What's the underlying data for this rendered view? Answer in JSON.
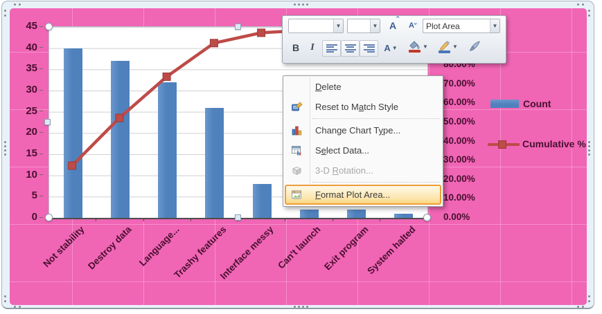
{
  "chart_data": {
    "type": "bar",
    "subtype": "pareto (clustered column + line on secondary axis)",
    "title": "",
    "categories": [
      "Not stability",
      "Destroy data",
      "Language...",
      "Trashy features",
      "Interface messy",
      "Can't launch",
      "Exit program",
      "System halted"
    ],
    "series": [
      {
        "name": "Count",
        "type": "bar",
        "axis": "left",
        "color": "#4F81BD",
        "values": [
          40,
          37,
          32,
          26,
          8,
          2,
          2,
          1
        ]
      },
      {
        "name": "Cumulative %",
        "type": "line",
        "axis": "right",
        "color": "#BE4B48",
        "marker": "square",
        "values": [
          27.0,
          52.0,
          73.6,
          91.2,
          96.6,
          98.0,
          99.3,
          100.0
        ]
      }
    ],
    "left_axis": {
      "min": 0,
      "max": 45,
      "step": 5
    },
    "right_axis": {
      "min": 0,
      "max": 100,
      "step": 10,
      "suffix": "%",
      "decimals": 2
    },
    "grid": "horizontal major gridlines",
    "legend_position": "right",
    "chart_area_color": "#F165B5",
    "axis_text_color": "#47102F"
  },
  "legend": {
    "series_1": "Count",
    "series_2": "Cumulative %"
  },
  "mini_toolbar": {
    "selection_label": "Plot Area",
    "font_name_value": "",
    "font_size_value": "",
    "bold_label": "B",
    "italic_label": "I",
    "grow_font_label": "A",
    "shrink_font_label": "A",
    "font_color_label": "A",
    "icons": [
      "grow-font",
      "shrink-font",
      "bold",
      "italic",
      "align-left",
      "align-center",
      "align-right",
      "font-color",
      "fill-color",
      "outline-color",
      "format-painter"
    ]
  },
  "context_menu": {
    "items": [
      {
        "pre": "",
        "key": "D",
        "post": "elete"
      },
      {
        "pre": "Reset to M",
        "key": "a",
        "post": "tch Style",
        "icon": "reset-style"
      },
      {
        "pre": "Change Chart T",
        "key": "y",
        "post": "pe...",
        "icon": "change-chart-type"
      },
      {
        "pre": "S",
        "key": "e",
        "post": "lect Data...",
        "icon": "select-data"
      },
      {
        "pre": "3-D ",
        "key": "R",
        "post": "otation...",
        "icon": "3d-rotation",
        "disabled": true
      },
      {
        "pre": "",
        "key": "F",
        "post": "ormat Plot Area...",
        "icon": "format-plot-area",
        "highlighted": true
      }
    ]
  },
  "colors": {
    "chart_area_pink": "#F165B5",
    "bar_blue": "#4F81BD",
    "line_red": "#BE4B48",
    "highlight_orange": "#EF9E39",
    "axis_text": "#47102F"
  }
}
